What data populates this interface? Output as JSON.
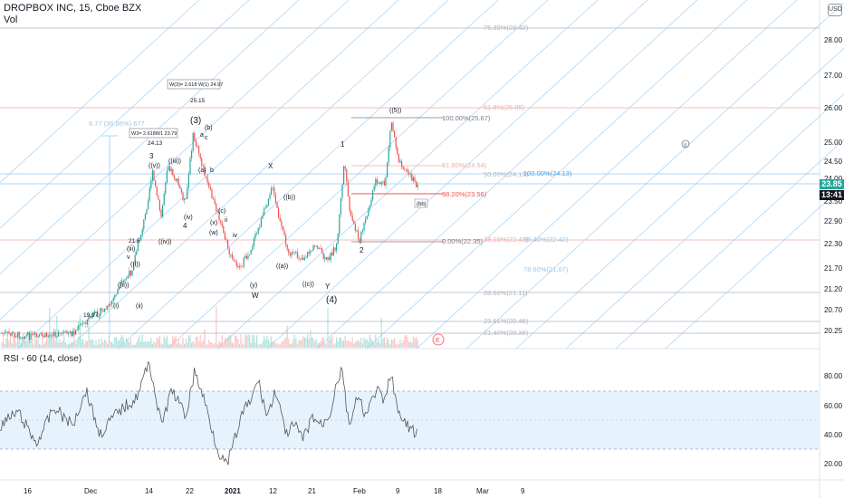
{
  "header": {
    "symbol_line": "DROPBOX INC, 15, Cboe BZX",
    "volume_label": "Vol",
    "currency_button": "USD"
  },
  "price_axis": {
    "labels": [
      "28.00",
      "27.00",
      "26.00",
      "25.00",
      "24.50",
      "24.00",
      "23.50",
      "22.90",
      "22.30",
      "21.70",
      "21.20",
      "20.70",
      "20.25"
    ],
    "current_price": "23.85",
    "countdown": "13:41",
    "current_price_color": "#26a69a",
    "countdown_color": "#131722"
  },
  "rsi_axis": {
    "labels": [
      "80.00",
      "60.00",
      "40.00",
      "20.00"
    ]
  },
  "rsi": {
    "title": "RSI - 60 (14, close)"
  },
  "time_axis": {
    "labels": [
      "16",
      "Dec",
      "14",
      "22",
      "2021",
      "12",
      "21",
      "Feb",
      "9",
      "18",
      "Mar",
      "9"
    ]
  },
  "fib_levels": {
    "f7639": "76.39%(28.42)",
    "f618a": "61.8%(25.96)",
    "f100": "100.00%(25.67)",
    "f618b": "61.80%(24.54)",
    "f50": "50.00%(24.13)",
    "f100b": "100.00%(24.13)",
    "f382": "38.20%(23.56)",
    "f0": "0.00%(22.35)",
    "f381": "38.19%(22.41)",
    "f854": "85.40%(22.42)",
    "f786": "78.60%(21.67)",
    "f286": "28.60%(21.11)",
    "f236": "23.61%(20.46)",
    "f214": "21.40%(20.38)",
    "f677": "6.77 (36.86%) 677"
  },
  "annotations": {
    "w3": "W(3)= 2.618 W(1) 24.97",
    "w3b": "W3= 2.618W1 23.79",
    "p2515": "25.15",
    "p2413": "24.13",
    "p1997": "19.97",
    "p216": "21.6",
    "wave3": "(3)",
    "wave4": "(4)",
    "lbl3": "3",
    "lbl4": "4",
    "lblX": "X",
    "lblW": "W",
    "lblY": "Y",
    "lbl1": "1",
    "lbl2": "2",
    "lbl5": "((5))",
    "lbl_iii": "((iii))",
    "lbl_iv": "((iv))",
    "lbl_v": "((v))",
    "lbl_b": "(b)",
    "lbl_a": "(a)",
    "lbl_c": "(c)",
    "lbl_x": "(x)",
    "lbl_y": "(y)",
    "lbl_w": "(w)",
    "lbl_ii": "((ii))",
    "lbl_i": "((i))",
    "lbl_iib": "(ii)",
    "lbl_ivb": "(iv)",
    "lbl_i3": "(i)",
    "lbl_iii3": "(iii)",
    "lbl_b2": "((b))",
    "lbl_c2": "((c))",
    "lbl_a2": "((a))",
    "lbl_v2": "v",
    "lbl_iv2": "iv",
    "lbl_ii2": "ii",
    "lbl_a3": "a",
    "lbl_b3": "b",
    "lbl_c3": "c",
    "lbl_circleE": "E",
    "lbl_circle8": "8"
  },
  "colors": {
    "up": "#26a69a",
    "down": "#ef5350",
    "fib_line": "#90caf9",
    "rsi_band": "#e3f2fd",
    "rsi_line": "#555555"
  }
}
